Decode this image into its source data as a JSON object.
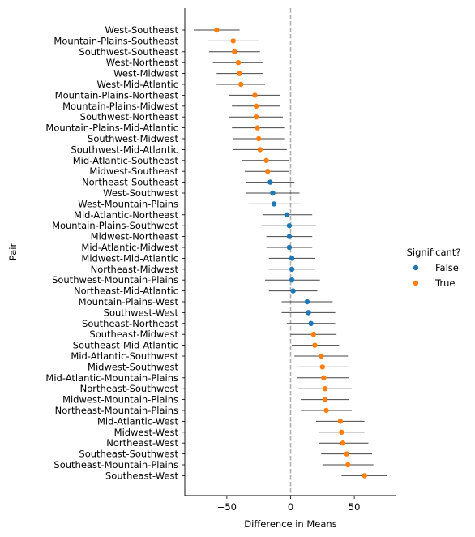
{
  "chart_data": {
    "type": "scatter",
    "title": "",
    "xlabel": "Difference in Means",
    "ylabel": "Pair",
    "xlim": [
      -83,
      83
    ],
    "xticks": [
      -50,
      0,
      50
    ],
    "reference_line_x": 0,
    "grid": false,
    "legend": {
      "title": "Significant?",
      "placement": "right",
      "entries": [
        {
          "label": "False",
          "color": "#1f77b4"
        },
        {
          "label": "True",
          "color": "#ff7f0e"
        }
      ]
    },
    "colors": {
      "false": "#1f77b4",
      "true": "#ff7f0e",
      "ci": "#444444",
      "refline": "#b0b0b0"
    },
    "points": [
      {
        "pair": "West-Southeast",
        "mean": -58,
        "low": -76,
        "high": -40,
        "significant": "True"
      },
      {
        "pair": "Mountain-Plains-Southeast",
        "mean": -45,
        "low": -65,
        "high": -25,
        "significant": "True"
      },
      {
        "pair": "Southwest-Southeast",
        "mean": -44,
        "low": -64,
        "high": -24,
        "significant": "True"
      },
      {
        "pair": "West-Northeast",
        "mean": -41,
        "low": -61,
        "high": -22,
        "significant": "True"
      },
      {
        "pair": "West-Midwest",
        "mean": -40,
        "low": -58,
        "high": -22,
        "significant": "True"
      },
      {
        "pair": "West-Mid-Atlantic",
        "mean": -39,
        "low": -58,
        "high": -20,
        "significant": "True"
      },
      {
        "pair": "Mountain-Plains-Northeast",
        "mean": -28,
        "low": -48,
        "high": -8,
        "significant": "True"
      },
      {
        "pair": "Mountain-Plains-Midwest",
        "mean": -27,
        "low": -46,
        "high": -8,
        "significant": "True"
      },
      {
        "pair": "Southwest-Northeast",
        "mean": -27,
        "low": -48,
        "high": -6,
        "significant": "True"
      },
      {
        "pair": "Mountain-Plains-Mid-Atlantic",
        "mean": -26,
        "low": -46,
        "high": -5,
        "significant": "True"
      },
      {
        "pair": "Southwest-Midwest",
        "mean": -25,
        "low": -45,
        "high": -5,
        "significant": "True"
      },
      {
        "pair": "Southwest-Mid-Atlantic",
        "mean": -24,
        "low": -45,
        "high": -3,
        "significant": "True"
      },
      {
        "pair": "Mid-Atlantic-Southeast",
        "mean": -19,
        "low": -38,
        "high": -1,
        "significant": "True"
      },
      {
        "pair": "Midwest-Southeast",
        "mean": -18,
        "low": -36,
        "high": -1,
        "significant": "True"
      },
      {
        "pair": "Northeast-Southeast",
        "mean": -16,
        "low": -35,
        "high": 3,
        "significant": "False"
      },
      {
        "pair": "West-Southwest",
        "mean": -14,
        "low": -35,
        "high": 7,
        "significant": "False"
      },
      {
        "pair": "West-Mountain-Plains",
        "mean": -13,
        "low": -33,
        "high": 7,
        "significant": "False"
      },
      {
        "pair": "Mid-Atlantic-Northeast",
        "mean": -3,
        "low": -22,
        "high": 17,
        "significant": "False"
      },
      {
        "pair": "Mountain-Plains-Southwest",
        "mean": -1,
        "low": -23,
        "high": 20,
        "significant": "False"
      },
      {
        "pair": "Midwest-Northeast",
        "mean": -1,
        "low": -19,
        "high": 17,
        "significant": "False"
      },
      {
        "pair": "Mid-Atlantic-Midwest",
        "mean": -1,
        "low": -19,
        "high": 17,
        "significant": "False"
      },
      {
        "pair": "Midwest-Mid-Atlantic",
        "mean": 1,
        "low": -17,
        "high": 19,
        "significant": "False"
      },
      {
        "pair": "Northeast-Midwest",
        "mean": 1,
        "low": -17,
        "high": 19,
        "significant": "False"
      },
      {
        "pair": "Southwest-Mountain-Plains",
        "mean": 1,
        "low": -20,
        "high": 23,
        "significant": "False"
      },
      {
        "pair": "Northeast-Mid-Atlantic",
        "mean": 2,
        "low": -17,
        "high": 21,
        "significant": "False"
      },
      {
        "pair": "Mountain-Plains-West",
        "mean": 13,
        "low": -7,
        "high": 33,
        "significant": "False"
      },
      {
        "pair": "Southwest-West",
        "mean": 14,
        "low": -7,
        "high": 35,
        "significant": "False"
      },
      {
        "pair": "Southeast-Northeast",
        "mean": 16,
        "low": -3,
        "high": 35,
        "significant": "False"
      },
      {
        "pair": "Southeast-Midwest",
        "mean": 18,
        "low": 0,
        "high": 36,
        "significant": "True"
      },
      {
        "pair": "Southeast-Mid-Atlantic",
        "mean": 19,
        "low": 1,
        "high": 38,
        "significant": "True"
      },
      {
        "pair": "Mid-Atlantic-Southwest",
        "mean": 24,
        "low": 3,
        "high": 45,
        "significant": "True"
      },
      {
        "pair": "Midwest-Southwest",
        "mean": 25,
        "low": 5,
        "high": 46,
        "significant": "True"
      },
      {
        "pair": "Mid-Atlantic-Mountain-Plains",
        "mean": 26,
        "low": 5,
        "high": 46,
        "significant": "True"
      },
      {
        "pair": "Northeast-Southwest",
        "mean": 27,
        "low": 6,
        "high": 48,
        "significant": "True"
      },
      {
        "pair": "Midwest-Mountain-Plains",
        "mean": 27,
        "low": 8,
        "high": 46,
        "significant": "True"
      },
      {
        "pair": "Northeast-Mountain-Plains",
        "mean": 28,
        "low": 8,
        "high": 48,
        "significant": "True"
      },
      {
        "pair": "Mid-Atlantic-West",
        "mean": 39,
        "low": 20,
        "high": 58,
        "significant": "True"
      },
      {
        "pair": "Midwest-West",
        "mean": 40,
        "low": 22,
        "high": 58,
        "significant": "True"
      },
      {
        "pair": "Northeast-West",
        "mean": 41,
        "low": 22,
        "high": 61,
        "significant": "True"
      },
      {
        "pair": "Southeast-Southwest",
        "mean": 44,
        "low": 24,
        "high": 64,
        "significant": "True"
      },
      {
        "pair": "Southeast-Mountain-Plains",
        "mean": 45,
        "low": 25,
        "high": 65,
        "significant": "True"
      },
      {
        "pair": "Southeast-West",
        "mean": 58,
        "low": 40,
        "high": 76,
        "significant": "True"
      }
    ]
  }
}
